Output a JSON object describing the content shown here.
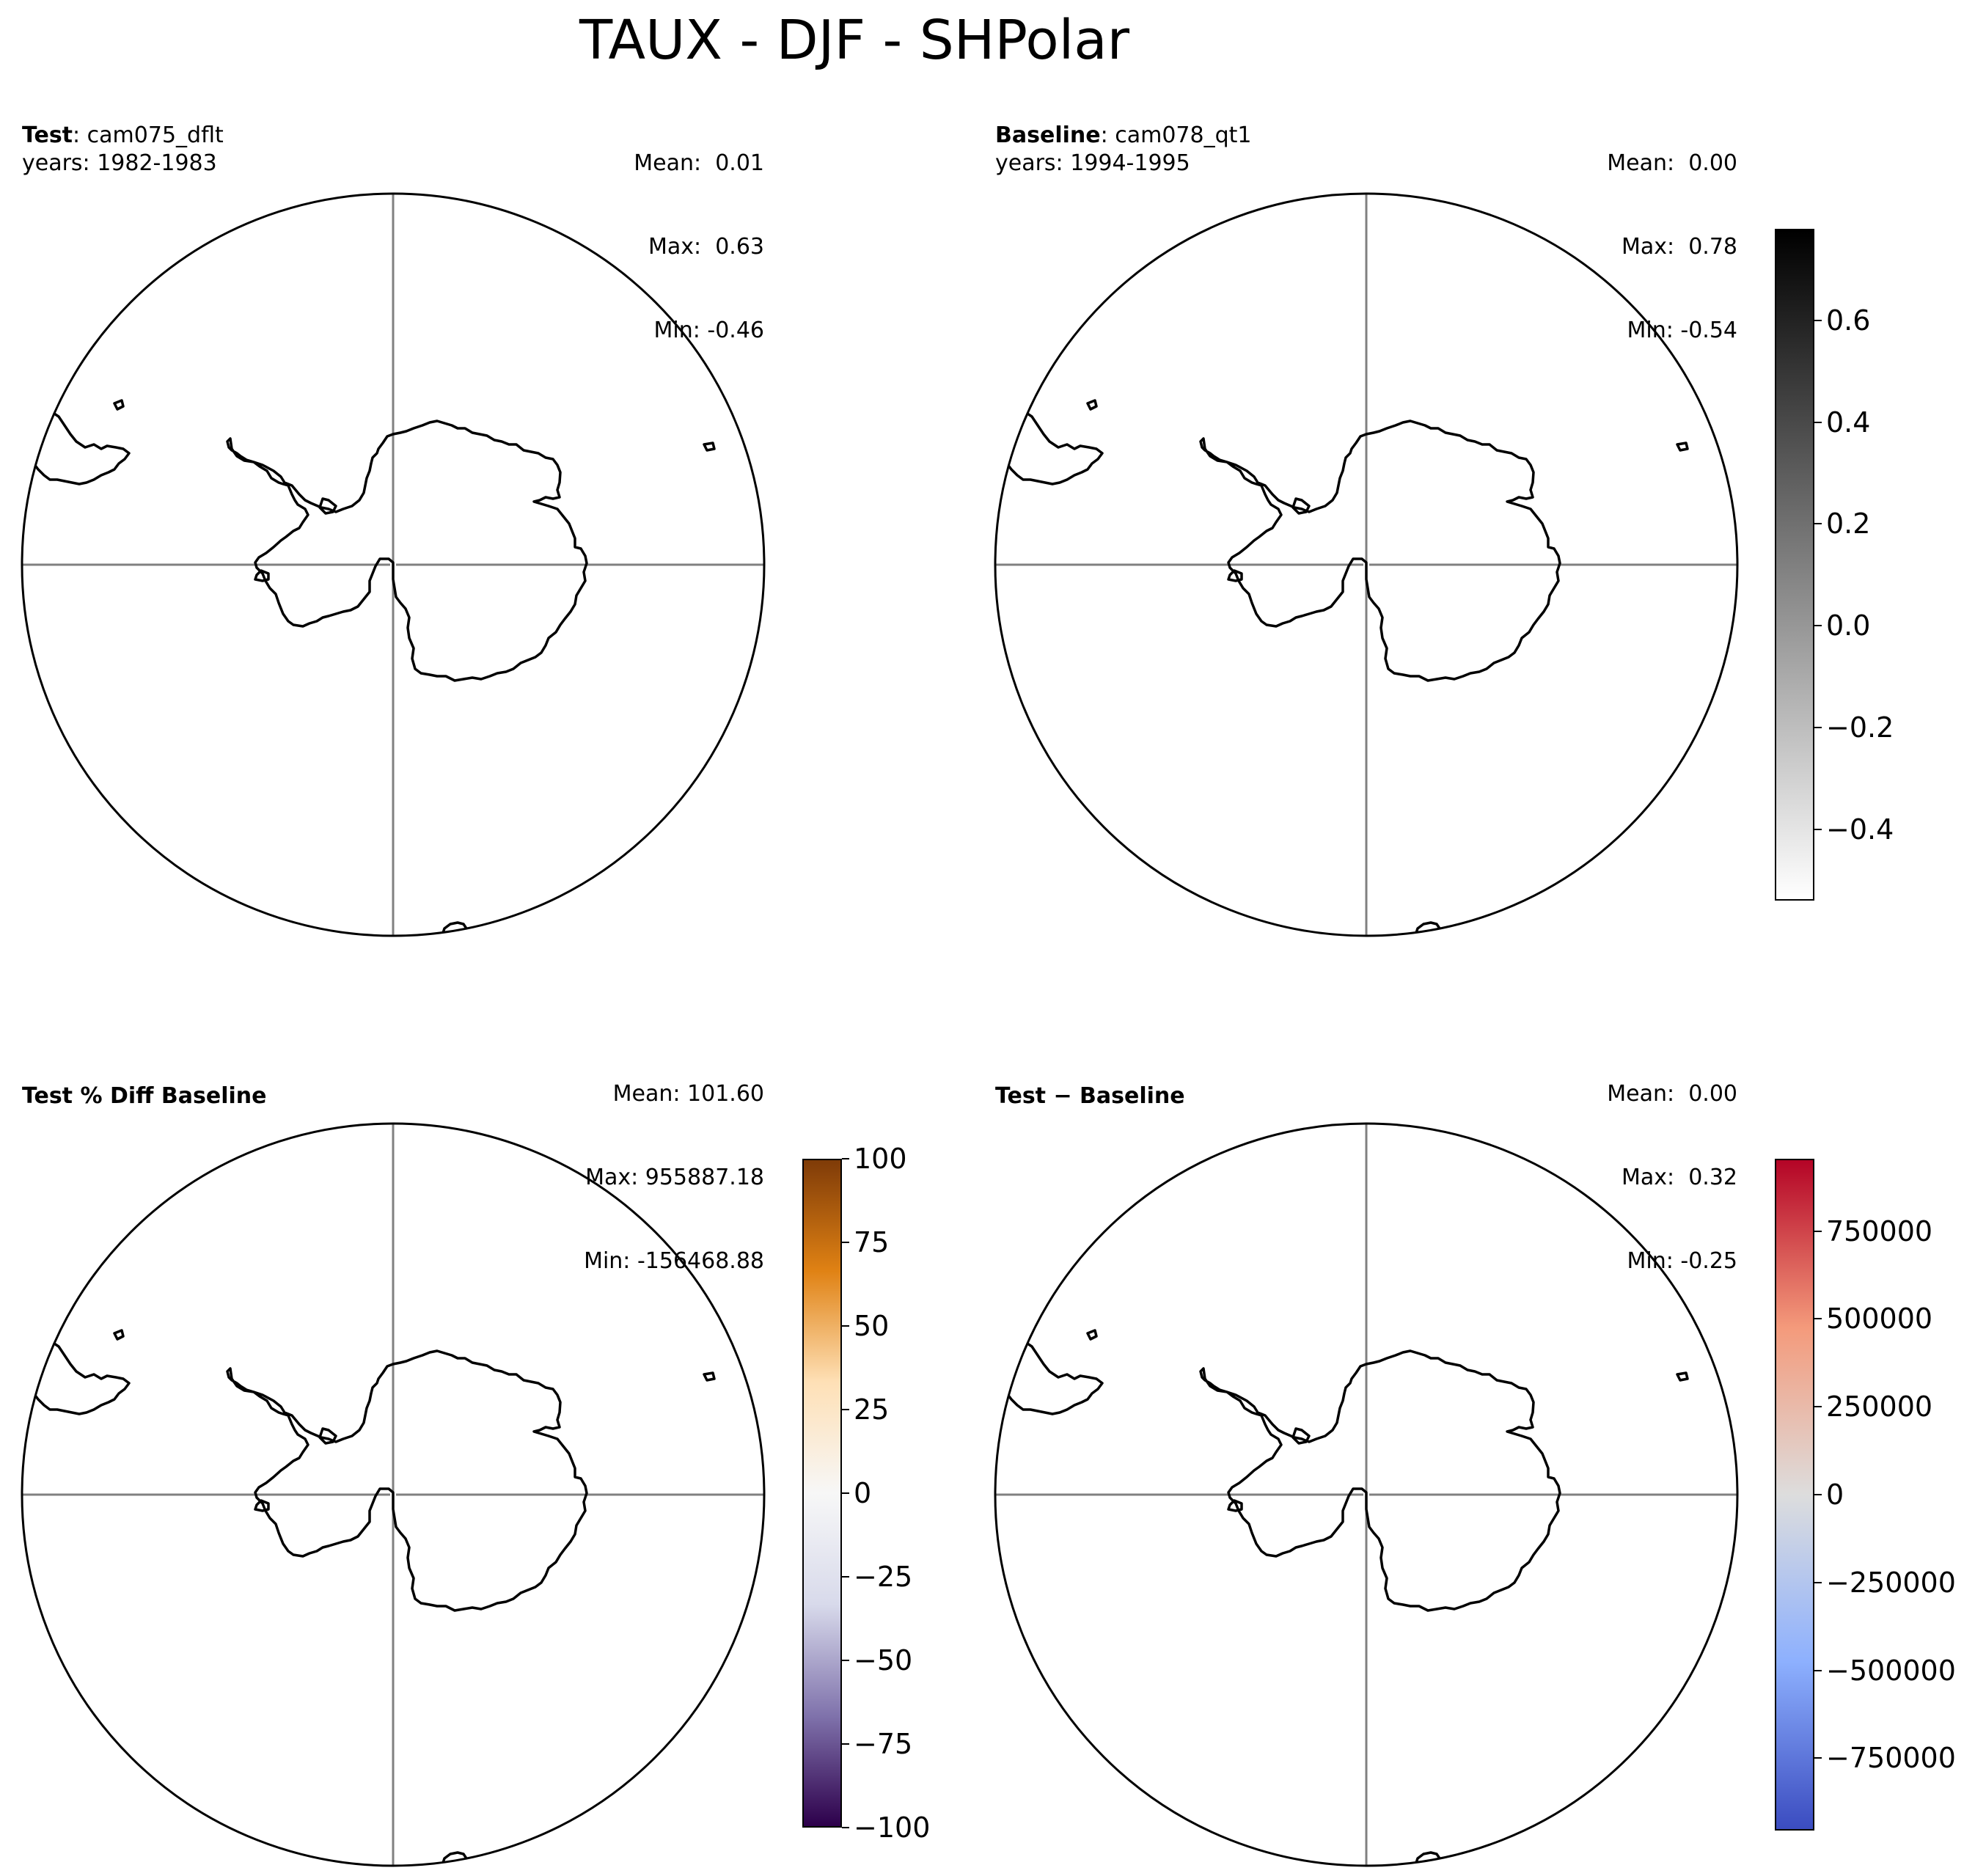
{
  "figure_title": "TAUX - DJF - SHPolar",
  "panels": [
    {
      "id": "test",
      "label_bold": "Test",
      "label_rest": ": cam075_dflt",
      "years": "years: 1982-1983",
      "stats": [
        "Mean:  0.01",
        "Max:  0.63",
        "Min: -0.46"
      ]
    },
    {
      "id": "baseline",
      "label_bold": "Baseline",
      "label_rest": ": cam078_qt1",
      "years": "years: 1994-1995",
      "stats": [
        "Mean:  0.00",
        "Max:  0.78",
        "Min: -0.54"
      ]
    },
    {
      "id": "pctdiff",
      "label_bold": "Test % Diff Baseline",
      "label_rest": "",
      "years": "",
      "stats": [
        "Mean: 101.60",
        "Max: 955887.18",
        "Min: -156468.88"
      ]
    },
    {
      "id": "diff",
      "label_bold": "Test − Baseline",
      "label_rest": "",
      "years": "",
      "stats": [
        "Mean:  0.00",
        "Max:  0.32",
        "Min: -0.25"
      ]
    }
  ],
  "colorbars": [
    {
      "id": "grey",
      "colors": [
        "#ffffff",
        "#000000"
      ],
      "range": [
        -0.54,
        0.78
      ],
      "ticks": [
        {
          "value": 0.6,
          "label": "0.6"
        },
        {
          "value": 0.4,
          "label": "0.4"
        },
        {
          "value": 0.2,
          "label": "0.2"
        },
        {
          "value": 0.0,
          "label": "0.0"
        },
        {
          "value": -0.2,
          "label": "−0.2"
        },
        {
          "value": -0.4,
          "label": "−0.4"
        }
      ]
    },
    {
      "id": "puor",
      "colors": [
        "#2d004b",
        "#8073ac",
        "#d8daeb",
        "#f7f7f7",
        "#fee0b6",
        "#e08214",
        "#7f3b08"
      ],
      "range": [
        -100,
        100
      ],
      "ticks": [
        {
          "value": 100,
          "label": "100"
        },
        {
          "value": 75,
          "label": "75"
        },
        {
          "value": 50,
          "label": "50"
        },
        {
          "value": 25,
          "label": "25"
        },
        {
          "value": 0,
          "label": "0"
        },
        {
          "value": -25,
          "label": "−25"
        },
        {
          "value": -50,
          "label": "−50"
        },
        {
          "value": -75,
          "label": "−75"
        },
        {
          "value": -100,
          "label": "−100"
        }
      ]
    },
    {
      "id": "coolwarm",
      "colors": [
        "#3b4cc0",
        "#8db0fe",
        "#dddddd",
        "#f49a7b",
        "#b40426"
      ],
      "range": [
        -955887.18,
        955887.18
      ],
      "ticks": [
        {
          "value": 750000,
          "label": "750000"
        },
        {
          "value": 500000,
          "label": "500000"
        },
        {
          "value": 250000,
          "label": "250000"
        },
        {
          "value": 0,
          "label": "0"
        },
        {
          "value": -250000,
          "label": "−250000"
        },
        {
          "value": -500000,
          "label": "−500000"
        },
        {
          "value": -750000,
          "label": "−750000"
        }
      ]
    }
  ],
  "colors": {
    "coastline": "#000000",
    "gridline": "#808080",
    "background": "#ffffff"
  }
}
